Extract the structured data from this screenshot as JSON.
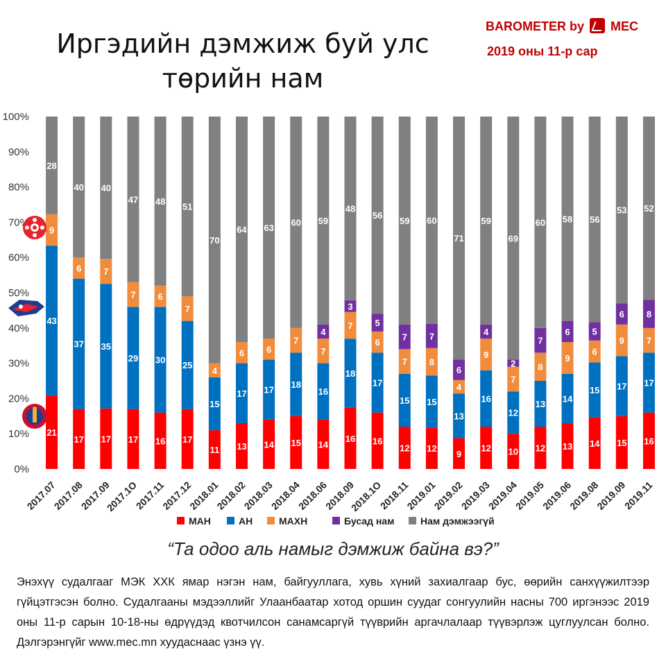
{
  "header": {
    "title_line1": "Иргэдийн дэмжиж буй улс",
    "title_line2": "төрийн нам",
    "brand_prefix": "BAROMETER by",
    "brand_name": "MEC",
    "subtitle": "2019 оны 11-р сар"
  },
  "question": "“Та одоо аль намыг дэмжиж байна вэ?”",
  "note": "Энэхүү судалгааг МЭК ХХК ямар нэгэн нам, байгууллага, хувь хүний захиалгаар бус, өөрийн санхүүжилтээр гүйцэтгэсэн болно. Судалгааны мэдээллийг Улаанбаатар хотод оршин суудаг сонгуулийн насны 700 иргэнээс 2019 оны 11-р сарын 10-18-ны өдрүүдэд квотчилсон санамсаргүй түүврийн аргачлалаар түүвэрлэж цуглуулсан болно. Дэлгэрэнгүйг www.mec.mn хуудаснаас үзнэ үү.",
  "emblems": [
    "MAN-emblem-icon",
    "AN-emblem-icon",
    "MAHN-emblem-icon"
  ],
  "chart_data": {
    "type": "bar",
    "stacked": "100%",
    "categories": [
      "2017.07",
      "2017.08",
      "2017.09",
      "2017.1O",
      "2017.11",
      "2017.12",
      "2018.01",
      "2018.02",
      "2018.03",
      "2018.04",
      "2018.06",
      "2018.09",
      "2018.1O",
      "2018.11",
      "2019.01",
      "2019.02",
      "2019.03",
      "2019.04",
      "2019.05",
      "2019.06",
      "2019.08",
      "2019.09",
      "2019.11"
    ],
    "yticks": [
      "0%",
      "10%",
      "20%",
      "30%",
      "40%",
      "50%",
      "60%",
      "70%",
      "80%",
      "90%",
      "100%"
    ],
    "ylim": [
      0,
      100
    ],
    "legend_position": "bottom",
    "series": [
      {
        "name": "МАН",
        "color": "#ff0000",
        "values": [
          21,
          17,
          17,
          17,
          16,
          17,
          11,
          13,
          14,
          15,
          14,
          16,
          16,
          12,
          12,
          9,
          12,
          10,
          12,
          13,
          14,
          15,
          16
        ]
      },
      {
        "name": "АН",
        "color": "#0070c0",
        "values": [
          43,
          37,
          35,
          29,
          30,
          25,
          15,
          17,
          17,
          18,
          16,
          18,
          17,
          15,
          15,
          13,
          16,
          12,
          13,
          14,
          15,
          17,
          17
        ]
      },
      {
        "name": "МАХН",
        "color": "#f08c3c",
        "values": [
          9,
          6,
          7,
          7,
          6,
          7,
          4,
          6,
          6,
          7,
          7,
          7,
          6,
          7,
          8,
          4,
          9,
          7,
          8,
          9,
          6,
          9,
          7
        ]
      },
      {
        "name": "Бусад нам",
        "color": "#7030a0",
        "values": [
          0,
          0,
          0,
          0,
          0,
          0,
          0,
          0,
          0,
          0,
          4,
          3,
          5,
          7,
          7,
          6,
          4,
          2,
          7,
          6,
          5,
          6,
          8
        ]
      },
      {
        "name": "Нам дэмжээгүй",
        "color": "#808080",
        "values": [
          28,
          40,
          40,
          47,
          48,
          51,
          70,
          64,
          63,
          60,
          59,
          48,
          56,
          59,
          60,
          71,
          59,
          69,
          60,
          58,
          56,
          53,
          52
        ]
      }
    ]
  }
}
